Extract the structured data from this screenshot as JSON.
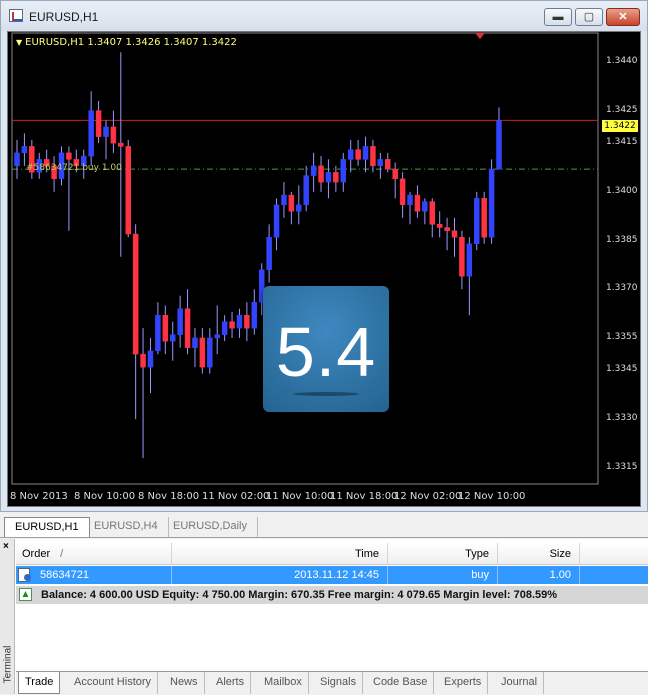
{
  "window": {
    "title": "EURUSD,H1",
    "min_glyph": "▬",
    "max_glyph": "▢",
    "close_glyph": "✕"
  },
  "chart": {
    "symbol_info": "EURUSD,H1  1.3407 1.3426 1.3407 1.3422",
    "order_label": "#58634721 buy 1.00",
    "bid_price": "1.3422",
    "colors": {
      "bull": "#3344ff",
      "bear": "#ff3344",
      "wick": "#9999ff",
      "bid_line": "#cc2222",
      "order_line": "#4a9a4a"
    }
  },
  "chart_data": {
    "type": "candlestick",
    "timeframe": "H1",
    "price_range": [
      1.331,
      1.3448
    ],
    "y_ticks": [
      "1.3440",
      "1.3425",
      "1.3415",
      "1.3400",
      "1.3385",
      "1.3370",
      "1.3355",
      "1.3345",
      "1.3330",
      "1.3315"
    ],
    "x_ticks": [
      "8 Nov 2013",
      "8 Nov 10:00",
      "8 Nov 18:00",
      "11 Nov 02:00",
      "11 Nov 10:00",
      "11 Nov 18:00",
      "12 Nov 02:00",
      "12 Nov 10:00"
    ],
    "current_price": 1.3422,
    "order_price": 1.3407,
    "candles": [
      [
        1.3408,
        1.3416,
        1.3404,
        1.3412
      ],
      [
        1.3412,
        1.3418,
        1.3408,
        1.3414
      ],
      [
        1.3414,
        1.3416,
        1.3404,
        1.3406
      ],
      [
        1.3406,
        1.3412,
        1.3404,
        1.341
      ],
      [
        1.341,
        1.3413,
        1.3406,
        1.3408
      ],
      [
        1.3408,
        1.3411,
        1.34,
        1.3404
      ],
      [
        1.3404,
        1.3414,
        1.3402,
        1.3412
      ],
      [
        1.3412,
        1.3414,
        1.3388,
        1.341
      ],
      [
        1.341,
        1.3413,
        1.3406,
        1.3408
      ],
      [
        1.3408,
        1.3413,
        1.3404,
        1.3411
      ],
      [
        1.3411,
        1.3431,
        1.3408,
        1.3425
      ],
      [
        1.3425,
        1.3428,
        1.3415,
        1.3417
      ],
      [
        1.3417,
        1.3422,
        1.341,
        1.342
      ],
      [
        1.342,
        1.3425,
        1.3412,
        1.3415
      ],
      [
        1.3415,
        1.3443,
        1.338,
        1.3414
      ],
      [
        1.3414,
        1.3416,
        1.3386,
        1.3387
      ],
      [
        1.3387,
        1.339,
        1.333,
        1.335
      ],
      [
        1.335,
        1.3358,
        1.3318,
        1.3346
      ],
      [
        1.3346,
        1.3355,
        1.3338,
        1.3351
      ],
      [
        1.3351,
        1.3366,
        1.335,
        1.3362
      ],
      [
        1.3362,
        1.3365,
        1.335,
        1.3354
      ],
      [
        1.3354,
        1.336,
        1.3348,
        1.3356
      ],
      [
        1.3356,
        1.3368,
        1.3352,
        1.3364
      ],
      [
        1.3364,
        1.337,
        1.335,
        1.3352
      ],
      [
        1.3352,
        1.3358,
        1.3346,
        1.3355
      ],
      [
        1.3355,
        1.3358,
        1.3344,
        1.3346
      ],
      [
        1.3346,
        1.3358,
        1.3344,
        1.3355
      ],
      [
        1.3355,
        1.3365,
        1.335,
        1.3356
      ],
      [
        1.3356,
        1.3362,
        1.3354,
        1.336
      ],
      [
        1.336,
        1.3363,
        1.3355,
        1.3358
      ],
      [
        1.3358,
        1.3364,
        1.3355,
        1.3362
      ],
      [
        1.3362,
        1.3366,
        1.3354,
        1.3358
      ],
      [
        1.3358,
        1.337,
        1.3356,
        1.3366
      ],
      [
        1.3366,
        1.3378,
        1.3362,
        1.3376
      ],
      [
        1.3376,
        1.339,
        1.3372,
        1.3386
      ],
      [
        1.3386,
        1.3398,
        1.3382,
        1.3396
      ],
      [
        1.3396,
        1.3403,
        1.3392,
        1.3399
      ],
      [
        1.3399,
        1.34,
        1.339,
        1.3394
      ],
      [
        1.3394,
        1.3402,
        1.339,
        1.3396
      ],
      [
        1.3396,
        1.3408,
        1.3394,
        1.3405
      ],
      [
        1.3405,
        1.3412,
        1.34,
        1.3408
      ],
      [
        1.3408,
        1.3411,
        1.34,
        1.3403
      ],
      [
        1.3403,
        1.341,
        1.3398,
        1.3406
      ],
      [
        1.3406,
        1.3408,
        1.34,
        1.3403
      ],
      [
        1.3403,
        1.3412,
        1.34,
        1.341
      ],
      [
        1.341,
        1.3416,
        1.3406,
        1.3413
      ],
      [
        1.3413,
        1.3416,
        1.3408,
        1.341
      ],
      [
        1.341,
        1.3417,
        1.3406,
        1.3414
      ],
      [
        1.3414,
        1.3416,
        1.3406,
        1.3408
      ],
      [
        1.3408,
        1.3412,
        1.3404,
        1.341
      ],
      [
        1.341,
        1.3412,
        1.3406,
        1.3407
      ],
      [
        1.3407,
        1.3409,
        1.3398,
        1.3404
      ],
      [
        1.3404,
        1.3406,
        1.3392,
        1.3396
      ],
      [
        1.3396,
        1.34,
        1.339,
        1.3399
      ],
      [
        1.3399,
        1.3402,
        1.3392,
        1.3394
      ],
      [
        1.3394,
        1.3398,
        1.339,
        1.3397
      ],
      [
        1.3397,
        1.3398,
        1.3386,
        1.339
      ],
      [
        1.339,
        1.3394,
        1.3386,
        1.3389
      ],
      [
        1.3389,
        1.3392,
        1.3382,
        1.3388
      ],
      [
        1.3388,
        1.3392,
        1.338,
        1.3386
      ],
      [
        1.3386,
        1.3388,
        1.337,
        1.3374
      ],
      [
        1.3374,
        1.3386,
        1.3362,
        1.3384
      ],
      [
        1.3384,
        1.34,
        1.3382,
        1.3398
      ],
      [
        1.3398,
        1.34,
        1.3384,
        1.3386
      ],
      [
        1.3386,
        1.341,
        1.3384,
        1.3407
      ],
      [
        1.3407,
        1.3426,
        1.3407,
        1.3422
      ]
    ]
  },
  "badge": {
    "text": "5.4"
  },
  "chart_tabs": [
    "EURUSD,H1",
    "EURUSD,H4",
    "EURUSD,Daily"
  ],
  "terminal": {
    "side_label": "Terminal",
    "close_glyph": "×",
    "columns": {
      "order": "Order",
      "sort": "/",
      "time": "Time",
      "type": "Type",
      "size": "Size"
    },
    "order_row": {
      "order": "58634721",
      "time": "2013.11.12 14:45",
      "type": "buy",
      "size": "1.00"
    },
    "balance_line": "Balance: 4 600.00 USD  Equity: 4 750.00  Margin: 670.35  Free margin: 4 079.65  Margin level: 708.59%",
    "tabs": [
      "Trade",
      "Account History",
      "News",
      "Alerts",
      "Mailbox",
      "Signals",
      "Code Base",
      "Experts",
      "Journal"
    ]
  }
}
